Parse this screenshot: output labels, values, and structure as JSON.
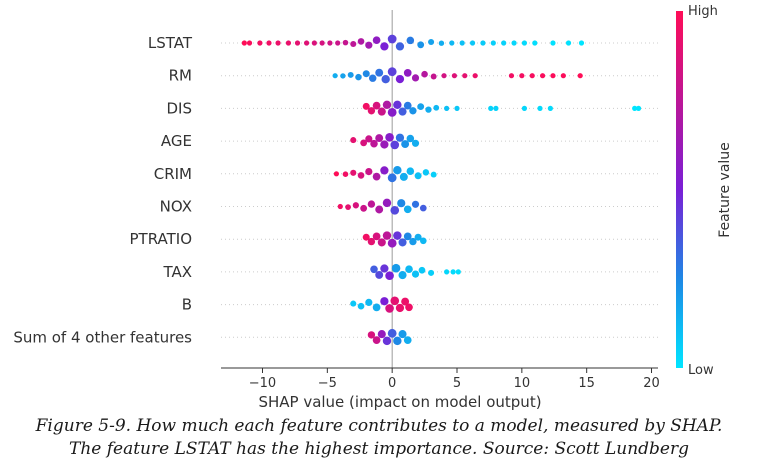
{
  "chart_data": {
    "type": "scatter",
    "subtype": "beeswarm",
    "xlabel": "SHAP value (impact on model output)",
    "xticks": [
      -10,
      -5,
      0,
      5,
      10,
      15,
      20
    ],
    "xlim": [
      -13.2,
      20.5
    ],
    "features": [
      "LSTAT",
      "RM",
      "DIS",
      "AGE",
      "CRIM",
      "NOX",
      "PTRATIO",
      "TAX",
      "B",
      "Sum of 4 other features"
    ],
    "colorbar": {
      "label": "Feature value",
      "high": "High",
      "low": "Low",
      "high_color": "#ff0d57",
      "mid_color": "#7a1fd6",
      "low_color": "#1e88e5",
      "low_end_color": "#00e5ff"
    },
    "series": [
      {
        "feature": "LSTAT",
        "points": [
          {
            "x": -11.4,
            "v": 1.0
          },
          {
            "x": -11.0,
            "v": 0.98
          },
          {
            "x": -10.2,
            "v": 0.96
          },
          {
            "x": -9.5,
            "v": 0.95
          },
          {
            "x": -8.8,
            "v": 0.93
          },
          {
            "x": -8.0,
            "v": 0.92
          },
          {
            "x": -7.3,
            "v": 0.9
          },
          {
            "x": -6.6,
            "v": 0.88
          },
          {
            "x": -6.0,
            "v": 0.86
          },
          {
            "x": -5.4,
            "v": 0.84
          },
          {
            "x": -4.8,
            "v": 0.82
          },
          {
            "x": -4.2,
            "v": 0.8
          },
          {
            "x": -3.6,
            "v": 0.78
          },
          {
            "x": -3.0,
            "v": 0.75
          },
          {
            "x": -2.4,
            "v": 0.7
          },
          {
            "x": -1.8,
            "v": 0.65
          },
          {
            "x": -1.2,
            "v": 0.58
          },
          {
            "x": -0.6,
            "v": 0.5
          },
          {
            "x": 0.0,
            "v": 0.42
          },
          {
            "x": 0.6,
            "v": 0.34
          },
          {
            "x": 1.4,
            "v": 0.28
          },
          {
            "x": 2.2,
            "v": 0.22
          },
          {
            "x": 3.0,
            "v": 0.18
          },
          {
            "x": 3.8,
            "v": 0.15
          },
          {
            "x": 4.6,
            "v": 0.12
          },
          {
            "x": 5.4,
            "v": 0.1
          },
          {
            "x": 6.2,
            "v": 0.08
          },
          {
            "x": 7.0,
            "v": 0.07
          },
          {
            "x": 7.8,
            "v": 0.06
          },
          {
            "x": 8.6,
            "v": 0.05
          },
          {
            "x": 9.4,
            "v": 0.04
          },
          {
            "x": 10.2,
            "v": 0.03
          },
          {
            "x": 11.0,
            "v": 0.02
          },
          {
            "x": 12.4,
            "v": 0.01
          },
          {
            "x": 13.6,
            "v": 0.01
          },
          {
            "x": 14.6,
            "v": 0.0
          }
        ]
      },
      {
        "feature": "RM",
        "points": [
          {
            "x": -4.4,
            "v": 0.15
          },
          {
            "x": -3.8,
            "v": 0.18
          },
          {
            "x": -3.2,
            "v": 0.2
          },
          {
            "x": -2.6,
            "v": 0.22
          },
          {
            "x": -2.0,
            "v": 0.25
          },
          {
            "x": -1.5,
            "v": 0.28
          },
          {
            "x": -1.0,
            "v": 0.3
          },
          {
            "x": -0.5,
            "v": 0.35
          },
          {
            "x": 0.0,
            "v": 0.42
          },
          {
            "x": 0.6,
            "v": 0.5
          },
          {
            "x": 1.2,
            "v": 0.58
          },
          {
            "x": 1.8,
            "v": 0.65
          },
          {
            "x": 2.5,
            "v": 0.72
          },
          {
            "x": 3.2,
            "v": 0.78
          },
          {
            "x": 4.0,
            "v": 0.83
          },
          {
            "x": 4.8,
            "v": 0.87
          },
          {
            "x": 5.6,
            "v": 0.9
          },
          {
            "x": 6.4,
            "v": 0.93
          },
          {
            "x": 9.2,
            "v": 0.95
          },
          {
            "x": 10.0,
            "v": 0.96
          },
          {
            "x": 10.8,
            "v": 0.97
          },
          {
            "x": 11.6,
            "v": 0.98
          },
          {
            "x": 12.4,
            "v": 0.99
          },
          {
            "x": 13.2,
            "v": 0.99
          },
          {
            "x": 14.5,
            "v": 1.0
          }
        ]
      },
      {
        "feature": "DIS",
        "points": [
          {
            "x": -2.0,
            "v": 0.95
          },
          {
            "x": -1.6,
            "v": 0.9
          },
          {
            "x": -1.2,
            "v": 0.85
          },
          {
            "x": -0.8,
            "v": 0.8
          },
          {
            "x": -0.4,
            "v": 0.7
          },
          {
            "x": 0.0,
            "v": 0.55
          },
          {
            "x": 0.4,
            "v": 0.45
          },
          {
            "x": 0.8,
            "v": 0.35
          },
          {
            "x": 1.2,
            "v": 0.28
          },
          {
            "x": 1.6,
            "v": 0.22
          },
          {
            "x": 2.2,
            "v": 0.18
          },
          {
            "x": 2.8,
            "v": 0.15
          },
          {
            "x": 3.4,
            "v": 0.12
          },
          {
            "x": 4.2,
            "v": 0.1
          },
          {
            "x": 5.0,
            "v": 0.08
          },
          {
            "x": 7.6,
            "v": 0.05
          },
          {
            "x": 8.0,
            "v": 0.05
          },
          {
            "x": 10.2,
            "v": 0.04
          },
          {
            "x": 11.4,
            "v": 0.03
          },
          {
            "x": 12.2,
            "v": 0.03
          },
          {
            "x": 18.7,
            "v": 0.0
          },
          {
            "x": 19.0,
            "v": 0.0
          }
        ]
      },
      {
        "feature": "AGE",
        "points": [
          {
            "x": -3.0,
            "v": 0.9
          },
          {
            "x": -2.2,
            "v": 0.85
          },
          {
            "x": -1.8,
            "v": 0.8
          },
          {
            "x": -1.4,
            "v": 0.75
          },
          {
            "x": -1.0,
            "v": 0.7
          },
          {
            "x": -0.6,
            "v": 0.62
          },
          {
            "x": -0.2,
            "v": 0.55
          },
          {
            "x": 0.2,
            "v": 0.42
          },
          {
            "x": 0.6,
            "v": 0.3
          },
          {
            "x": 1.0,
            "v": 0.22
          },
          {
            "x": 1.4,
            "v": 0.18
          },
          {
            "x": 1.8,
            "v": 0.15
          }
        ]
      },
      {
        "feature": "CRIM",
        "points": [
          {
            "x": -4.3,
            "v": 1.0
          },
          {
            "x": -3.6,
            "v": 0.95
          },
          {
            "x": -3.0,
            "v": 0.9
          },
          {
            "x": -2.4,
            "v": 0.85
          },
          {
            "x": -1.8,
            "v": 0.8
          },
          {
            "x": -1.2,
            "v": 0.7
          },
          {
            "x": -0.6,
            "v": 0.55
          },
          {
            "x": 0.0,
            "v": 0.3
          },
          {
            "x": 0.4,
            "v": 0.2
          },
          {
            "x": 0.9,
            "v": 0.15
          },
          {
            "x": 1.4,
            "v": 0.12
          },
          {
            "x": 2.0,
            "v": 0.1
          },
          {
            "x": 2.6,
            "v": 0.08
          },
          {
            "x": 3.2,
            "v": 0.06
          }
        ]
      },
      {
        "feature": "NOX",
        "points": [
          {
            "x": -4.0,
            "v": 0.95
          },
          {
            "x": -3.4,
            "v": 0.9
          },
          {
            "x": -2.8,
            "v": 0.85
          },
          {
            "x": -2.2,
            "v": 0.8
          },
          {
            "x": -1.6,
            "v": 0.75
          },
          {
            "x": -1.0,
            "v": 0.7
          },
          {
            "x": -0.4,
            "v": 0.6
          },
          {
            "x": 0.2,
            "v": 0.4
          },
          {
            "x": 0.7,
            "v": 0.25
          },
          {
            "x": 1.2,
            "v": 0.15
          },
          {
            "x": 1.8,
            "v": 0.3
          },
          {
            "x": 2.4,
            "v": 0.35
          }
        ]
      },
      {
        "feature": "PTRATIO",
        "points": [
          {
            "x": -2.0,
            "v": 0.95
          },
          {
            "x": -1.6,
            "v": 0.9
          },
          {
            "x": -1.2,
            "v": 0.85
          },
          {
            "x": -0.8,
            "v": 0.8
          },
          {
            "x": -0.4,
            "v": 0.75
          },
          {
            "x": 0.0,
            "v": 0.6
          },
          {
            "x": 0.4,
            "v": 0.45
          },
          {
            "x": 0.8,
            "v": 0.35
          },
          {
            "x": 1.2,
            "v": 0.25
          },
          {
            "x": 1.6,
            "v": 0.2
          },
          {
            "x": 2.0,
            "v": 0.15
          },
          {
            "x": 2.4,
            "v": 0.12
          }
        ]
      },
      {
        "feature": "TAX",
        "points": [
          {
            "x": -1.4,
            "v": 0.35
          },
          {
            "x": -1.0,
            "v": 0.4
          },
          {
            "x": -0.6,
            "v": 0.45
          },
          {
            "x": -0.2,
            "v": 0.5
          },
          {
            "x": 0.3,
            "v": 0.2
          },
          {
            "x": 0.8,
            "v": 0.15
          },
          {
            "x": 1.3,
            "v": 0.12
          },
          {
            "x": 1.8,
            "v": 0.1
          },
          {
            "x": 2.3,
            "v": 0.08
          },
          {
            "x": 3.0,
            "v": 0.06
          },
          {
            "x": 4.2,
            "v": 0.04
          },
          {
            "x": 4.7,
            "v": 0.03
          },
          {
            "x": 5.1,
            "v": 0.02
          }
        ]
      },
      {
        "feature": "B",
        "points": [
          {
            "x": -3.0,
            "v": 0.08
          },
          {
            "x": -2.4,
            "v": 0.1
          },
          {
            "x": -1.8,
            "v": 0.12
          },
          {
            "x": -1.2,
            "v": 0.15
          },
          {
            "x": -0.6,
            "v": 0.5
          },
          {
            "x": -0.2,
            "v": 0.85
          },
          {
            "x": 0.2,
            "v": 0.9
          },
          {
            "x": 0.6,
            "v": 0.92
          },
          {
            "x": 1.0,
            "v": 0.93
          },
          {
            "x": 1.3,
            "v": 0.94
          }
        ]
      },
      {
        "feature": "Sum of 4 other features",
        "points": [
          {
            "x": -1.6,
            "v": 0.85
          },
          {
            "x": -1.2,
            "v": 0.8
          },
          {
            "x": -0.8,
            "v": 0.6
          },
          {
            "x": -0.4,
            "v": 0.45
          },
          {
            "x": 0.0,
            "v": 0.35
          },
          {
            "x": 0.4,
            "v": 0.25
          },
          {
            "x": 0.8,
            "v": 0.2
          },
          {
            "x": 1.2,
            "v": 0.15
          }
        ]
      }
    ]
  },
  "caption": {
    "line1": "Figure 5-9. How much each feature contributes to a model, measured by SHAP.",
    "line2": "The feature LSTAT has the highest importance. Source: Scott Lundberg"
  }
}
